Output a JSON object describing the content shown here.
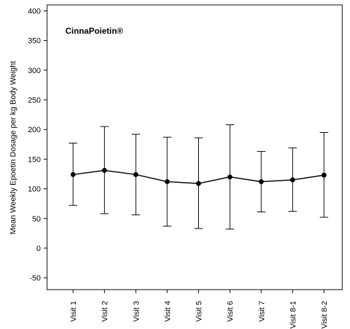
{
  "chart_data": {
    "type": "line",
    "title": "CinnaPoietin®",
    "xlabel": "",
    "ylabel": "Mean Weekly Epoetin Dosage per kg Body Weight",
    "categories": [
      "Visit 1",
      "Visit 2",
      "Visit 3",
      "Visit 4",
      "Visit 5",
      "Visit 6",
      "Visit 7",
      "Visit 8-1",
      "Visit 8-2"
    ],
    "series": [
      {
        "values": [
          124,
          131,
          124,
          112,
          109,
          120,
          112,
          115,
          123
        ],
        "error_lower": [
          72,
          58,
          56,
          37,
          33,
          32,
          61,
          62,
          52
        ],
        "error_upper": [
          177,
          205,
          192,
          187,
          186,
          208,
          163,
          169,
          195
        ]
      }
    ],
    "ylim": [
      -70,
      410
    ],
    "yticks": [
      -50,
      0,
      50,
      100,
      150,
      200,
      250,
      300,
      350,
      400
    ],
    "grid": false,
    "color": "#000000"
  }
}
